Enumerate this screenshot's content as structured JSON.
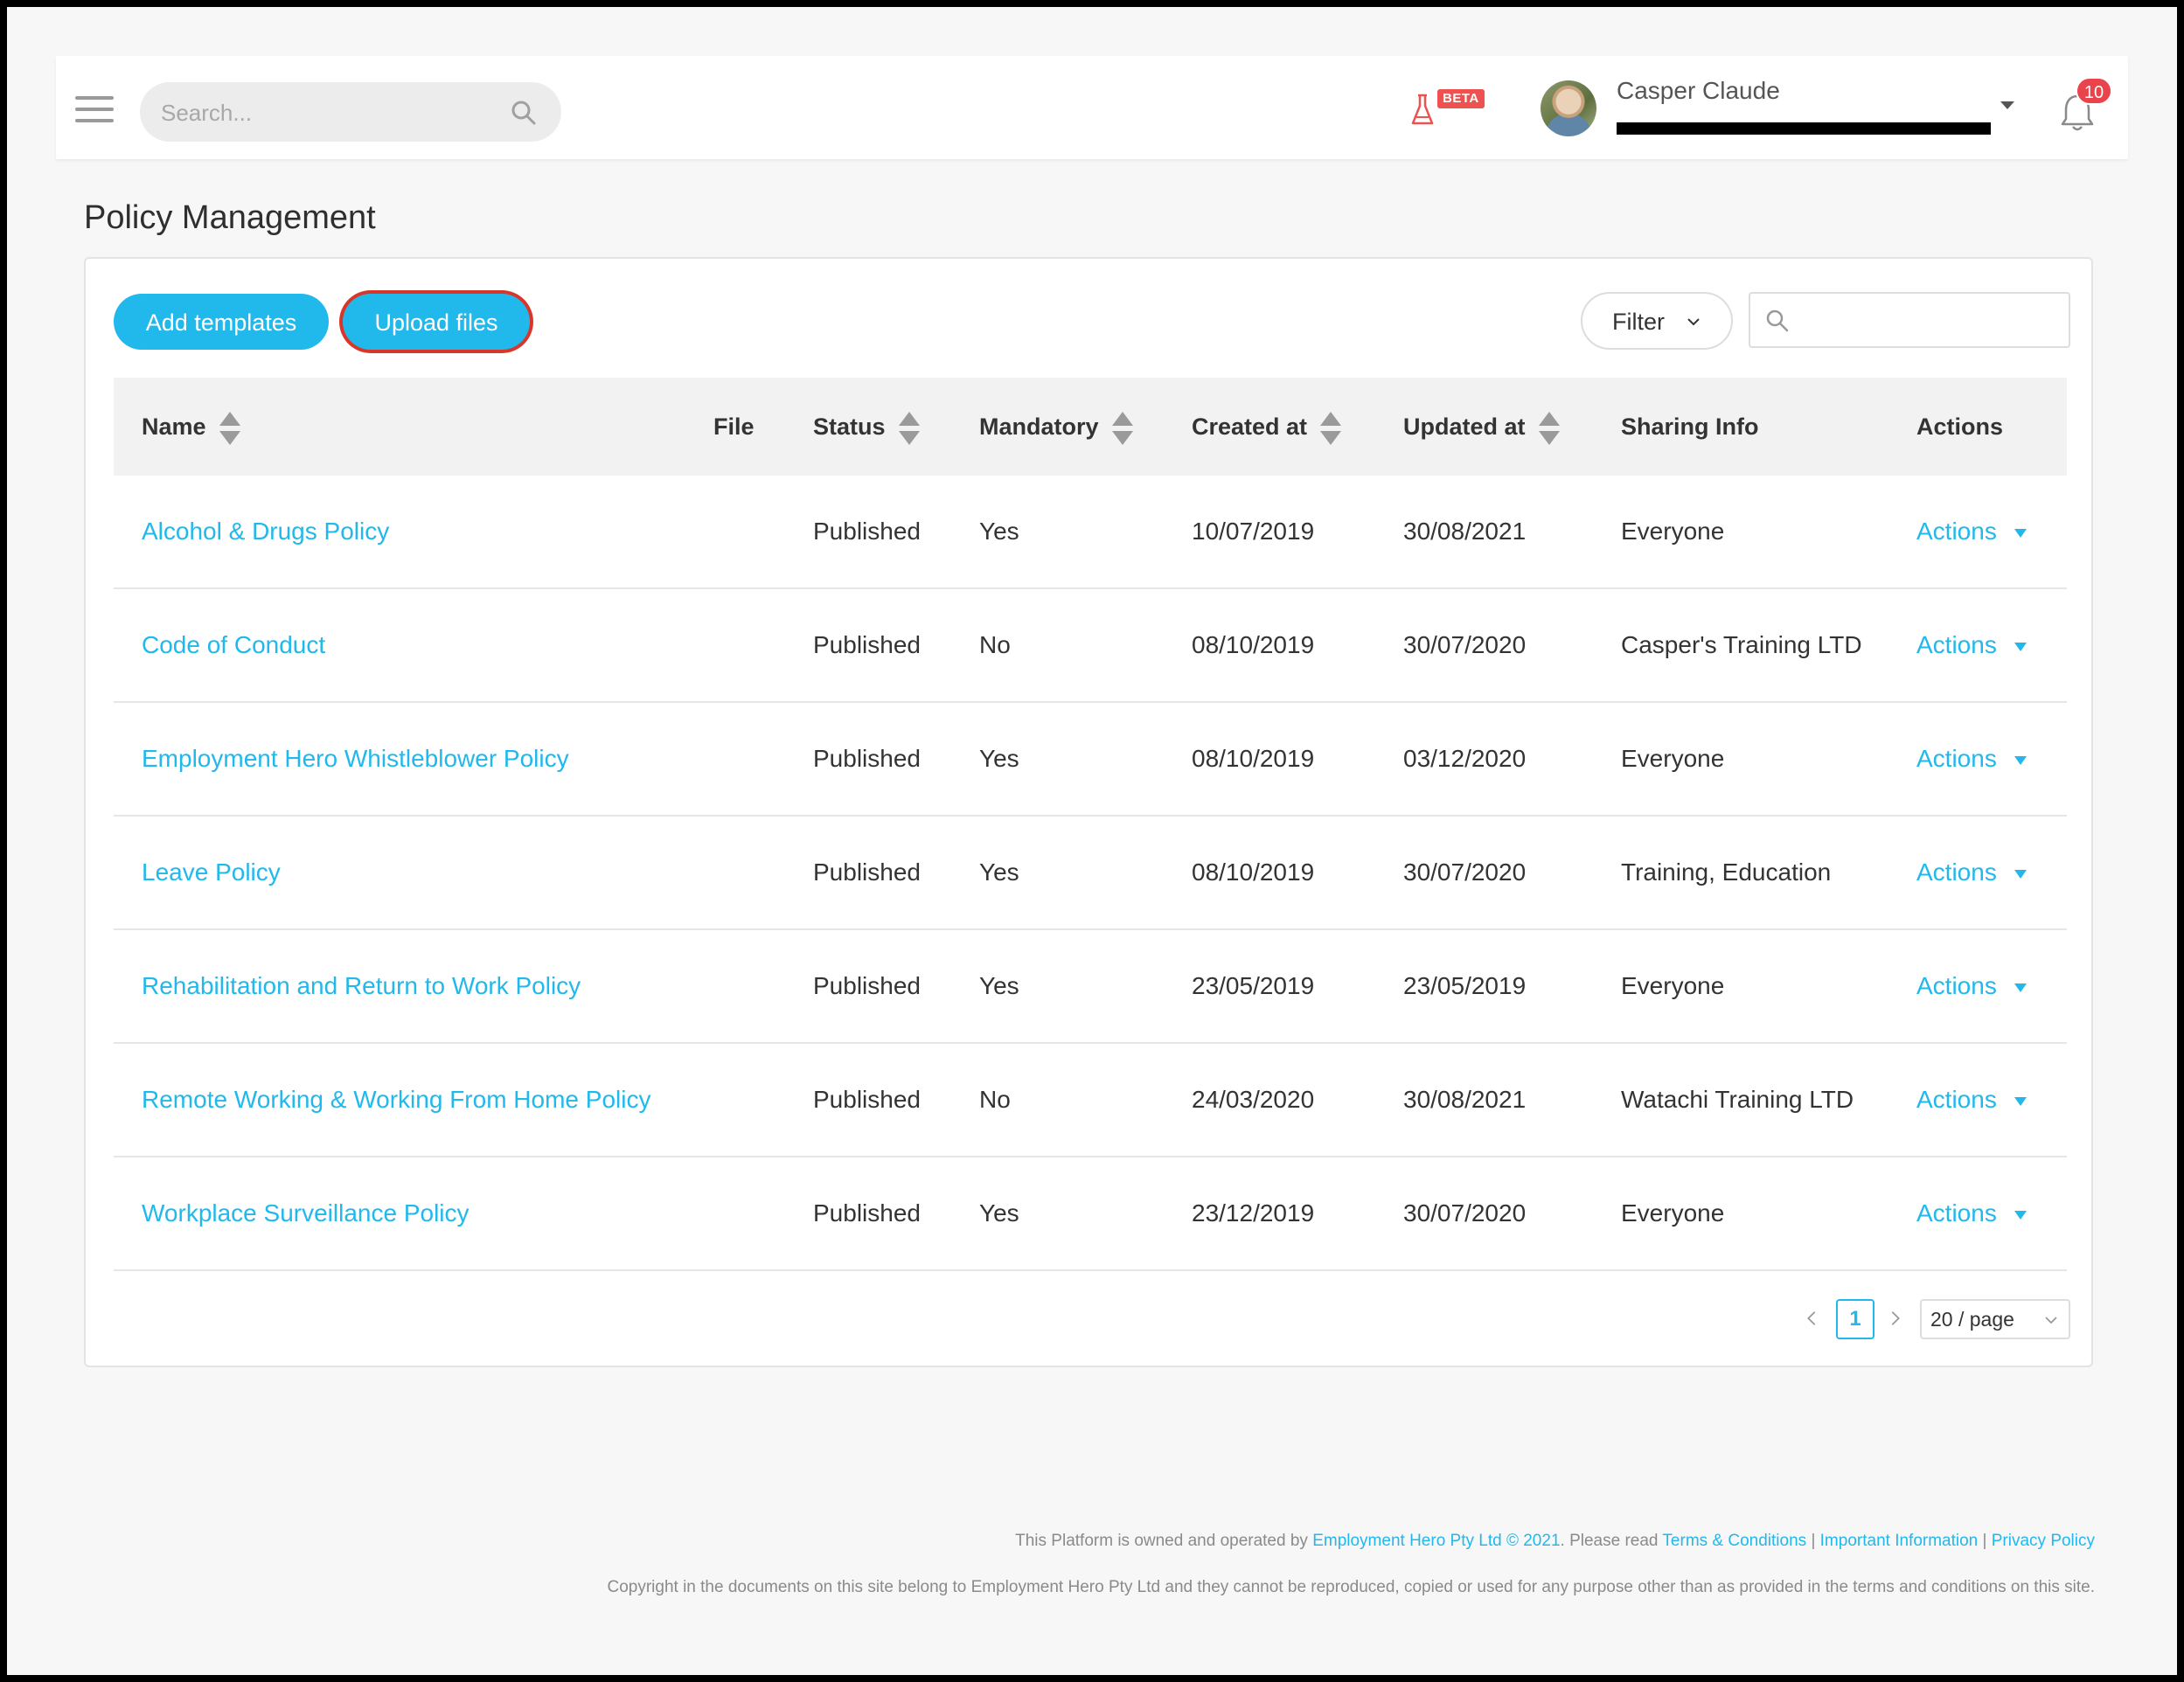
{
  "header": {
    "search_placeholder": "Search...",
    "beta_label": "BETA",
    "user_name": "Casper Claude",
    "notification_count": "10"
  },
  "page": {
    "title": "Policy Management"
  },
  "toolbar": {
    "add_templates_label": "Add templates",
    "upload_files_label": "Upload files",
    "filter_label": "Filter"
  },
  "table": {
    "columns": {
      "name": "Name",
      "file": "File",
      "status": "Status",
      "mandatory": "Mandatory",
      "created_at": "Created at",
      "updated_at": "Updated at",
      "sharing_info": "Sharing Info",
      "actions": "Actions"
    },
    "rows": [
      {
        "name": "Alcohol & Drugs Policy",
        "status": "Published",
        "mandatory": "Yes",
        "created_at": "10/07/2019",
        "updated_at": "30/08/2021",
        "sharing": "Everyone",
        "actions": "Actions"
      },
      {
        "name": "Code of Conduct",
        "status": "Published",
        "mandatory": "No",
        "created_at": "08/10/2019",
        "updated_at": "30/07/2020",
        "sharing": "Casper's Training LTD",
        "actions": "Actions"
      },
      {
        "name": "Employment Hero Whistleblower Policy",
        "status": "Published",
        "mandatory": "Yes",
        "created_at": "08/10/2019",
        "updated_at": "03/12/2020",
        "sharing": "Everyone",
        "actions": "Actions"
      },
      {
        "name": "Leave Policy",
        "status": "Published",
        "mandatory": "Yes",
        "created_at": "08/10/2019",
        "updated_at": "30/07/2020",
        "sharing": "Training, Education",
        "actions": "Actions"
      },
      {
        "name": "Rehabilitation and Return to Work Policy",
        "status": "Published",
        "mandatory": "Yes",
        "created_at": "23/05/2019",
        "updated_at": "23/05/2019",
        "sharing": "Everyone",
        "actions": "Actions"
      },
      {
        "name": "Remote Working & Working From Home Policy",
        "status": "Published",
        "mandatory": "No",
        "created_at": "24/03/2020",
        "updated_at": "30/08/2021",
        "sharing": "Watachi Training LTD",
        "actions": "Actions"
      },
      {
        "name": "Workplace Surveillance Policy",
        "status": "Published",
        "mandatory": "Yes",
        "created_at": "23/12/2019",
        "updated_at": "30/07/2020",
        "sharing": "Everyone",
        "actions": "Actions"
      }
    ]
  },
  "pagination": {
    "current_page": "1",
    "page_size": "20 / page"
  },
  "footer": {
    "line1_prefix": "This Platform is owned and operated by",
    "company_link": "Employment Hero Pty Ltd © 2021",
    "line1_mid": ". Please read",
    "terms_link": "Terms & Conditions",
    "separator": "|",
    "important_link": "Important Information",
    "privacy_link": "Privacy Policy",
    "copyright": "Copyright in the documents on this site belong to Employment Hero Pty Ltd and they cannot be reproduced, copied or used for any purpose other than as provided in the terms and conditions on this site."
  },
  "colors": {
    "accent": "#21b8ec",
    "badge_red": "#e9434b",
    "highlight_outline": "#d9362b"
  }
}
